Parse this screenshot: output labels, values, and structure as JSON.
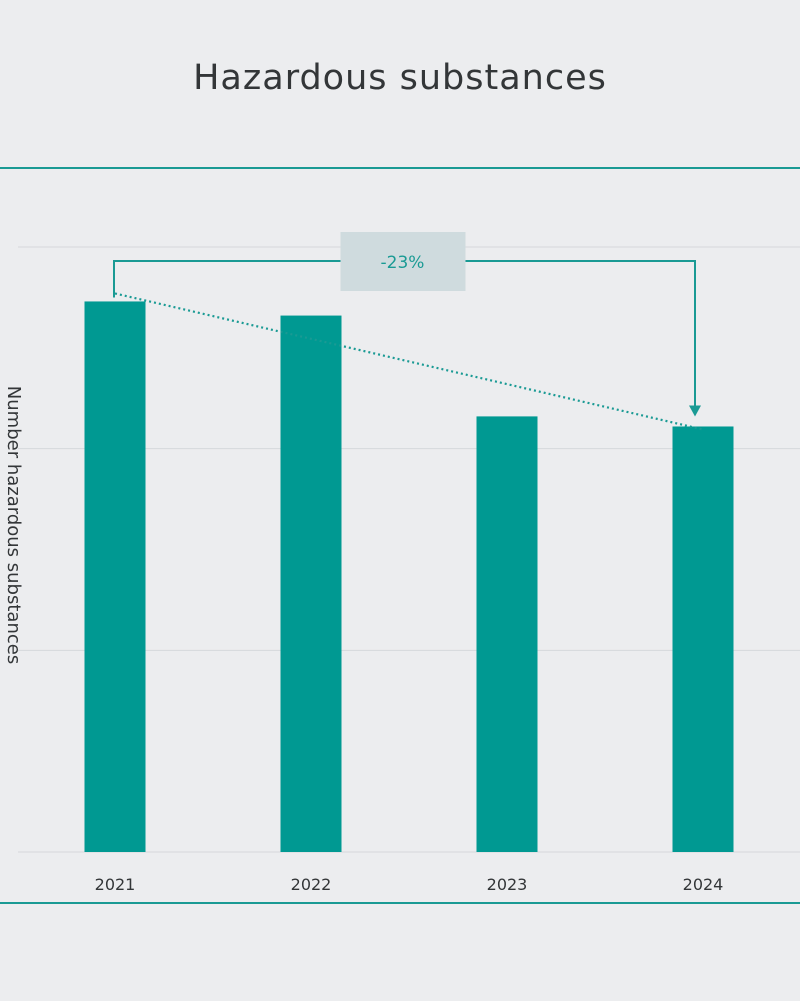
{
  "chart_data": {
    "type": "bar",
    "title": "Hazardous substances",
    "ylabel": "Number hazardous substances",
    "categories": [
      "2021",
      "2022",
      "2023",
      "2024"
    ],
    "values": [
      2.73,
      2.66,
      2.16,
      2.11
    ],
    "ylim": [
      0,
      3
    ],
    "grid": true,
    "annotation": {
      "label": "-23%",
      "from": "2021",
      "to": "2024"
    },
    "colors": {
      "bar": "#009992",
      "accent": "#1a9a94",
      "label_box": "#cfdbde",
      "grid": "#d6d8db"
    }
  }
}
